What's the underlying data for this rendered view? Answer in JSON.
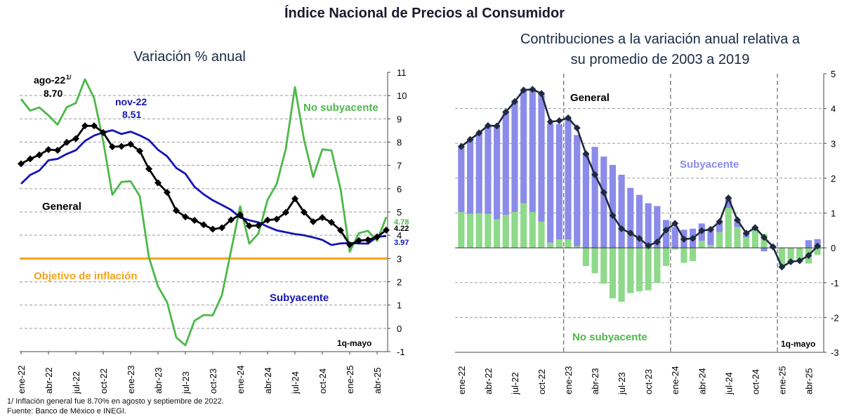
{
  "main_title": "Índice Nacional de Precios al Consumidor",
  "footnote": "1/ Inflación general fue 8.70% en agosto y septiembre de 2022.",
  "source": "Fuente: Banco de México e INEGI.",
  "colors": {
    "general": "#000000",
    "subyacente": "#1515b5",
    "no_subyacente": "#4db84a",
    "objetivo": "#f5a21b",
    "bar_sub": "#8b8bea",
    "bar_nosub": "#8ed98a",
    "contrib_line": "#1e2a3e"
  },
  "chart_data": [
    {
      "type": "line",
      "title": "Variación % anual",
      "x_ticks": [
        "ene-22",
        "abr-22",
        "jul-22",
        "oct-22",
        "ene-23",
        "abr-23",
        "jul-23",
        "oct-23",
        "ene-24",
        "abr-24",
        "jul-24",
        "oct-24",
        "ene-25",
        "abr-25"
      ],
      "ylim": [
        -1,
        11
      ],
      "y_ticks": [
        "-1",
        "0",
        "1",
        "2",
        "3",
        "4",
        "5",
        "6",
        "7",
        "8",
        "9",
        "10",
        "11"
      ],
      "grid": true,
      "x": [
        "ene-22",
        "feb-22",
        "mar-22",
        "abr-22",
        "may-22",
        "jun-22",
        "jul-22",
        "ago-22",
        "sep-22",
        "oct-22",
        "nov-22",
        "dic-22",
        "ene-23",
        "feb-23",
        "mar-23",
        "abr-23",
        "may-23",
        "jun-23",
        "jul-23",
        "ago-23",
        "sep-23",
        "oct-23",
        "nov-23",
        "dic-23",
        "ene-24",
        "feb-24",
        "mar-24",
        "abr-24",
        "may-24",
        "jun-24",
        "jul-24",
        "ago-24",
        "sep-24",
        "oct-24",
        "nov-24",
        "dic-24",
        "ene-25",
        "feb-25",
        "mar-25",
        "abr-25",
        "1q-mayo"
      ],
      "series": [
        {
          "name": "General",
          "color_key": "general",
          "markers": true,
          "values": [
            7.07,
            7.28,
            7.45,
            7.68,
            7.65,
            7.99,
            8.15,
            8.7,
            8.7,
            8.41,
            7.8,
            7.82,
            7.91,
            7.62,
            6.85,
            6.25,
            5.84,
            5.06,
            4.79,
            4.64,
            4.45,
            4.26,
            4.32,
            4.66,
            4.88,
            4.4,
            4.42,
            4.65,
            4.69,
            4.98,
            5.57,
            4.99,
            4.58,
            4.76,
            4.55,
            4.21,
            3.59,
            3.77,
            3.8,
            3.93,
            4.22
          ]
        },
        {
          "name": "Subyacente",
          "color_key": "subyacente",
          "markers": false,
          "values": [
            6.21,
            6.59,
            6.78,
            7.22,
            7.28,
            7.49,
            7.65,
            8.05,
            8.28,
            8.42,
            8.51,
            8.35,
            8.45,
            8.29,
            8.09,
            7.67,
            7.39,
            6.89,
            6.64,
            6.08,
            5.76,
            5.5,
            5.3,
            5.09,
            4.76,
            4.64,
            4.55,
            4.37,
            4.21,
            4.13,
            4.05,
            4.0,
            3.91,
            3.8,
            3.58,
            3.65,
            3.66,
            3.65,
            3.64,
            3.93,
            3.97
          ]
        },
        {
          "name": "No subyacente",
          "color_key": "no_subyacente",
          "markers": false,
          "values": [
            9.85,
            9.35,
            9.49,
            9.15,
            8.75,
            9.5,
            9.68,
            10.7,
            9.89,
            8.03,
            5.74,
            6.29,
            6.32,
            5.68,
            3.06,
            1.8,
            1.12,
            -0.39,
            -0.73,
            0.33,
            0.57,
            0.56,
            1.42,
            3.33,
            5.24,
            3.64,
            4.07,
            5.52,
            6.2,
            7.71,
            10.36,
            8.09,
            6.5,
            7.69,
            7.64,
            5.98,
            3.29,
            4.09,
            4.19,
            3.76,
            4.78
          ]
        },
        {
          "name": "Objetivo de inflación",
          "color_key": "objetivo",
          "markers": false,
          "constant": 3
        }
      ],
      "annotations": [
        {
          "label": "ago-22",
          "superscript": "1/",
          "value": "8.70"
        },
        {
          "label": "nov-22",
          "value": "8.51"
        },
        {
          "end_label_no_subyacente": "4.78",
          "end_label_general": "4.22",
          "end_label_subyacente": "3.97"
        },
        {
          "period": "1q-mayo"
        }
      ]
    },
    {
      "type": "bar",
      "title": "Contribuciones a la variación anual relativa a su promedio de 2003 a 2019",
      "x_ticks": [
        "ene-22",
        "abr-22",
        "jul-22",
        "oct-22",
        "ene-23",
        "abr-23",
        "jul-23",
        "oct-23",
        "ene-24",
        "abr-24",
        "jul-24",
        "oct-24",
        "ene-25",
        "abr-25"
      ],
      "ylim": [
        -3,
        5
      ],
      "y_ticks": [
        "-3",
        "-2",
        "-1",
        "0",
        "1",
        "2",
        "3",
        "4",
        "5"
      ],
      "grid": true,
      "stacked": true,
      "x": [
        "ene-22",
        "feb-22",
        "mar-22",
        "abr-22",
        "may-22",
        "jun-22",
        "jul-22",
        "ago-22",
        "sep-22",
        "oct-22",
        "nov-22",
        "dic-22",
        "ene-23",
        "feb-23",
        "mar-23",
        "abr-23",
        "may-23",
        "jun-23",
        "jul-23",
        "ago-23",
        "sep-23",
        "oct-23",
        "nov-23",
        "dic-23",
        "ene-24",
        "feb-24",
        "mar-24",
        "abr-24",
        "may-24",
        "jun-24",
        "jul-24",
        "ago-24",
        "sep-24",
        "oct-24",
        "nov-24",
        "dic-24",
        "ene-25",
        "feb-25",
        "mar-25",
        "abr-25",
        "1q-mayo"
      ],
      "series": [
        {
          "name": "Subyacente",
          "color_key": "bar_sub",
          "values": [
            1.88,
            2.13,
            2.3,
            2.53,
            2.68,
            2.95,
            3.17,
            3.25,
            3.52,
            3.68,
            3.42,
            3.31,
            3.49,
            3.19,
            2.7,
            2.9,
            2.62,
            2.38,
            2.1,
            1.72,
            1.52,
            1.28,
            1.2,
            0.8,
            0.6,
            0.52,
            0.55,
            0.5,
            0.45,
            0.3,
            0.28,
            0.2,
            0.12,
            0.08,
            -0.1,
            -0.02,
            -0.02,
            -0.03,
            -0.02,
            0.22,
            0.25
          ]
        },
        {
          "name": "No subyacente",
          "color_key": "bar_nosub",
          "values": [
            1.03,
            0.98,
            1.0,
            0.98,
            0.82,
            0.95,
            1.03,
            1.28,
            1.03,
            0.75,
            0.15,
            0.24,
            0.24,
            0.05,
            -0.52,
            -0.73,
            -1.03,
            -1.45,
            -1.55,
            -1.3,
            -1.25,
            -1.22,
            -1.0,
            -0.52,
            -0.05,
            -0.43,
            -0.38,
            0.2,
            0.08,
            0.45,
            1.15,
            0.6,
            0.3,
            0.5,
            0.4,
            0.05,
            -0.48,
            -0.38,
            -0.35,
            -0.45,
            -0.2
          ]
        },
        {
          "name": "General",
          "type": "line",
          "color_key": "contrib_line",
          "markers": true,
          "values": [
            2.91,
            3.11,
            3.3,
            3.51,
            3.5,
            3.9,
            4.2,
            4.53,
            4.55,
            4.43,
            3.62,
            3.65,
            3.73,
            3.44,
            2.7,
            2.1,
            1.59,
            0.93,
            0.55,
            0.42,
            0.27,
            0.06,
            0.17,
            0.51,
            0.7,
            0.25,
            0.27,
            0.49,
            0.53,
            0.75,
            1.43,
            0.8,
            0.42,
            0.58,
            0.3,
            0.03,
            -0.55,
            -0.4,
            -0.37,
            -0.22,
            0.05
          ]
        }
      ],
      "annotations": [
        {
          "text": "General"
        },
        {
          "text": "Subyacente"
        },
        {
          "text": "No subyacente"
        },
        {
          "period": "1q-mayo"
        }
      ]
    }
  ]
}
